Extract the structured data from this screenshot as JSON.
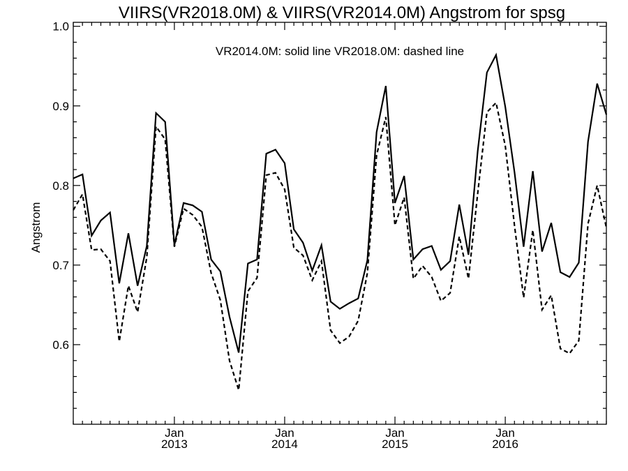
{
  "chart_data": {
    "type": "line",
    "title": "VIIRS(VR2018.0M) & VIIRS(VR2014.0M)  Angstrom for spsg",
    "ylabel": "Angstrom",
    "xlabel": "",
    "legend_text": "VR2014.0M: solid line   VR2018.0M: dashed line",
    "ylim": [
      0.5,
      1.005
    ],
    "y_ticks": [
      0.6,
      0.7,
      0.8,
      0.9,
      1.0
    ],
    "y_tick_labels": [
      "0.6",
      "0.7",
      "0.8",
      "0.9",
      "1.0"
    ],
    "x_start": "2012-02",
    "x_end": "2016-12",
    "x_major_ticks": [
      {
        "month": "Jan",
        "year": "2013"
      },
      {
        "month": "Jan",
        "year": "2014"
      },
      {
        "month": "Jan",
        "year": "2015"
      },
      {
        "month": "Jan",
        "year": "2016"
      }
    ],
    "x": [
      "2012-02",
      "2012-03",
      "2012-04",
      "2012-05",
      "2012-06",
      "2012-07",
      "2012-08",
      "2012-09",
      "2012-10",
      "2012-11",
      "2012-12",
      "2013-01",
      "2013-02",
      "2013-03",
      "2013-04",
      "2013-05",
      "2013-06",
      "2013-07",
      "2013-08",
      "2013-09",
      "2013-10",
      "2013-11",
      "2013-12",
      "2014-01",
      "2014-02",
      "2014-03",
      "2014-04",
      "2014-05",
      "2014-06",
      "2014-07",
      "2014-08",
      "2014-09",
      "2014-10",
      "2014-11",
      "2014-12",
      "2015-01",
      "2015-02",
      "2015-03",
      "2015-04",
      "2015-05",
      "2015-06",
      "2015-07",
      "2015-08",
      "2015-09",
      "2015-10",
      "2015-11",
      "2015-12",
      "2016-01",
      "2016-02",
      "2016-03",
      "2016-04",
      "2016-05",
      "2016-06",
      "2016-07",
      "2016-08",
      "2016-09",
      "2016-10",
      "2016-11",
      "2016-12"
    ],
    "series": [
      {
        "name": "VR2014.0M",
        "style": "solid",
        "values": [
          0.809,
          0.814,
          0.737,
          0.756,
          0.766,
          0.677,
          0.74,
          0.674,
          0.724,
          0.891,
          0.88,
          0.725,
          0.778,
          0.775,
          0.767,
          0.707,
          0.692,
          0.635,
          0.59,
          0.702,
          0.707,
          0.84,
          0.845,
          0.828,
          0.745,
          0.728,
          0.693,
          0.725,
          0.654,
          0.645,
          0.652,
          0.658,
          0.706,
          0.867,
          0.925,
          0.778,
          0.812,
          0.707,
          0.72,
          0.724,
          0.694,
          0.705,
          0.776,
          0.713,
          0.843,
          0.942,
          0.964,
          0.899,
          0.817,
          0.723,
          0.818,
          0.717,
          0.753,
          0.691,
          0.685,
          0.703,
          0.855,
          0.928,
          0.889
        ]
      },
      {
        "name": "VR2018.0M",
        "style": "dashed",
        "values": [
          0.769,
          0.789,
          0.719,
          0.72,
          0.705,
          0.604,
          0.674,
          0.641,
          0.71,
          0.874,
          0.858,
          0.723,
          0.771,
          0.763,
          0.748,
          0.69,
          0.656,
          0.58,
          0.543,
          0.667,
          0.684,
          0.813,
          0.816,
          0.795,
          0.722,
          0.712,
          0.681,
          0.705,
          0.618,
          0.602,
          0.61,
          0.63,
          0.69,
          0.838,
          0.886,
          0.75,
          0.785,
          0.683,
          0.699,
          0.685,
          0.655,
          0.665,
          0.736,
          0.683,
          0.79,
          0.892,
          0.904,
          0.85,
          0.75,
          0.659,
          0.744,
          0.644,
          0.662,
          0.595,
          0.589,
          0.605,
          0.752,
          0.8,
          0.747
        ]
      }
    ]
  }
}
